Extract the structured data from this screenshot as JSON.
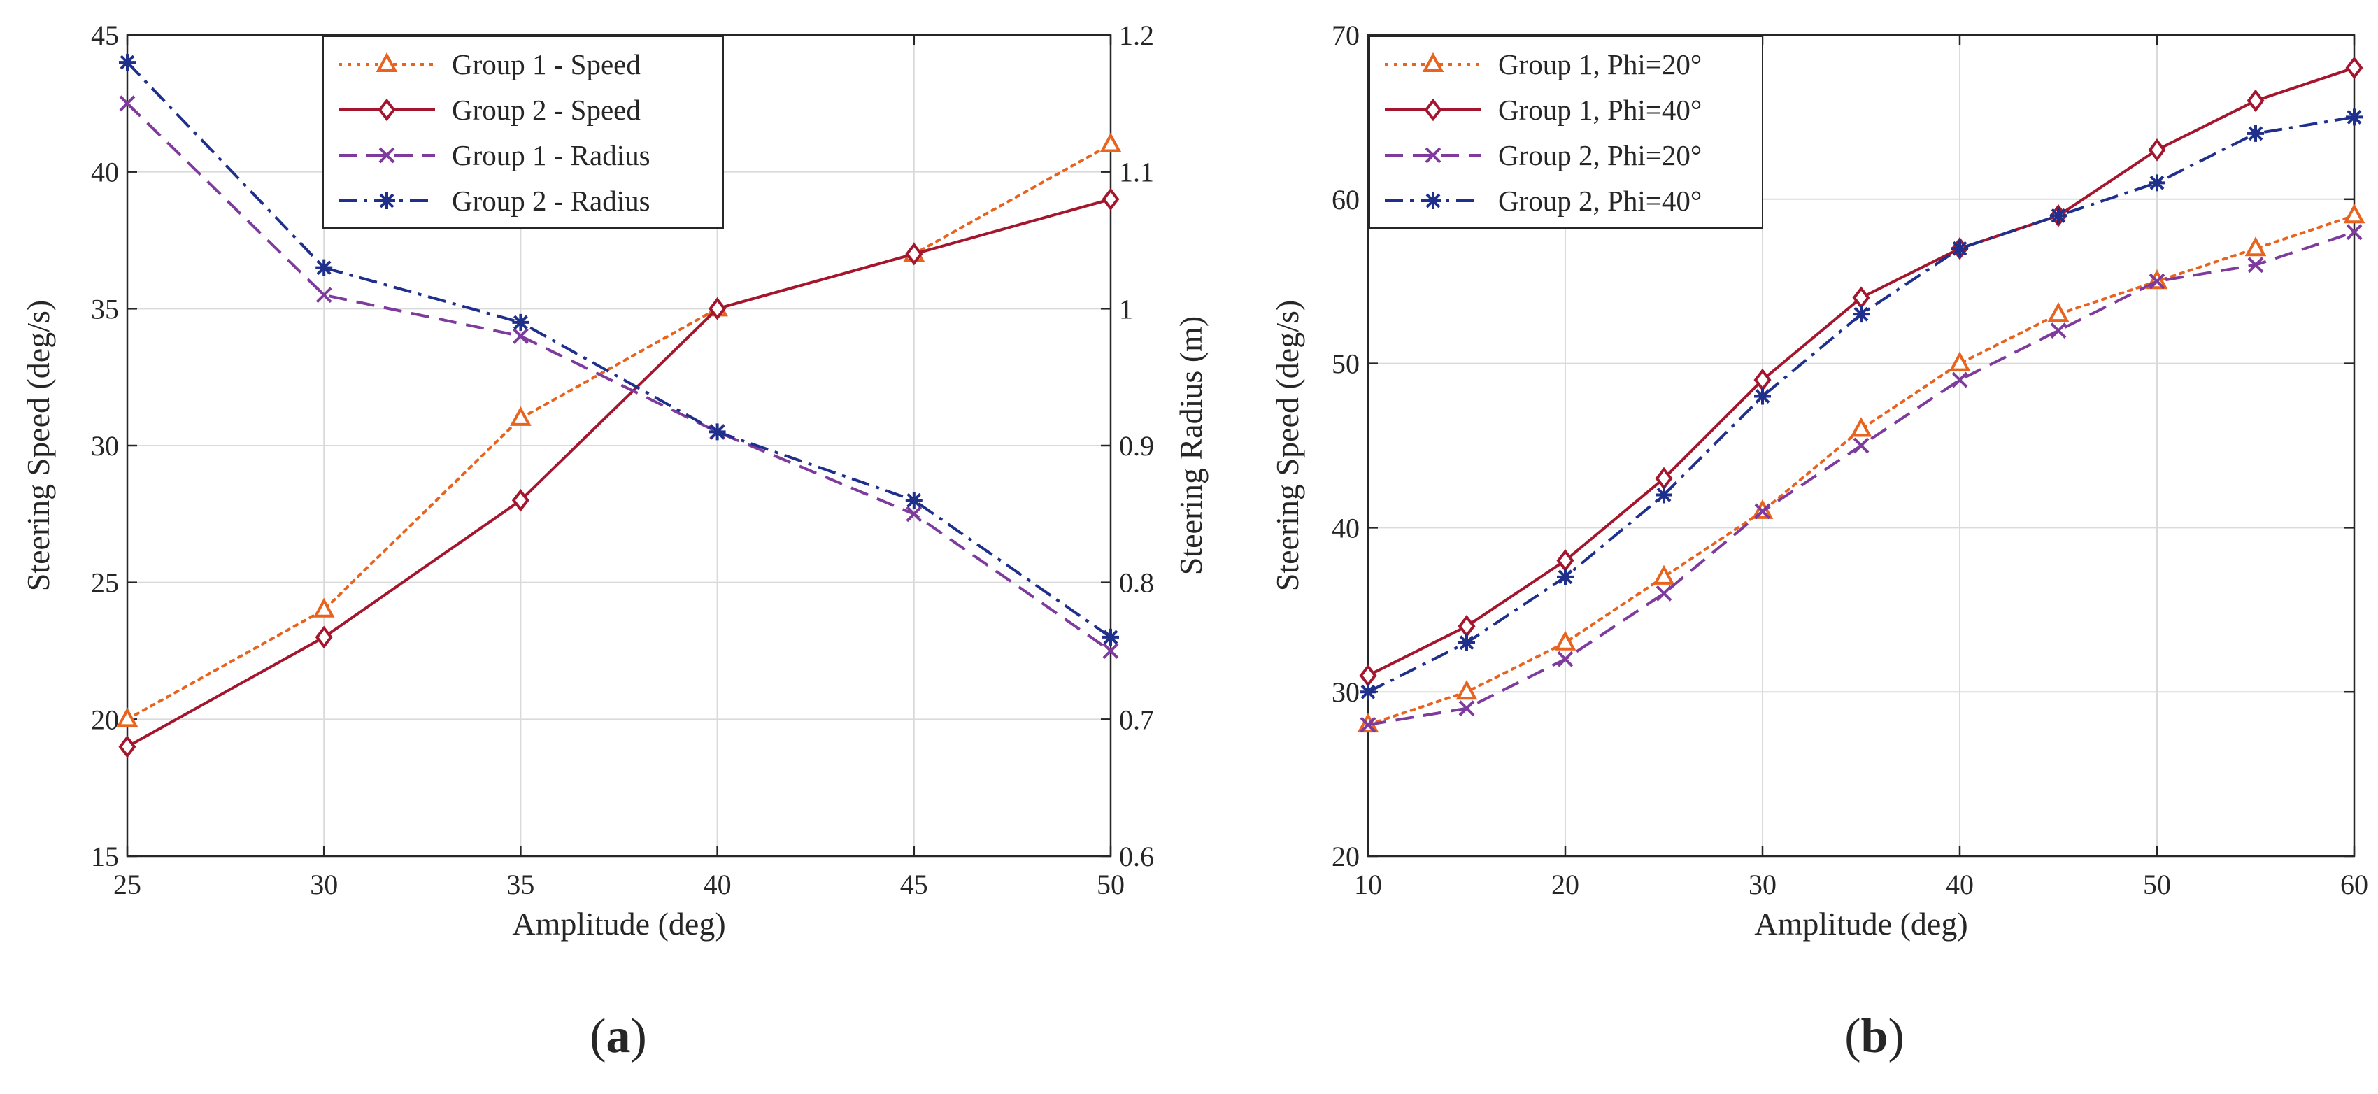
{
  "chart_data": [
    {
      "type": "line",
      "panel_label": "(a)",
      "panel_letter": "a",
      "xlabel": "Amplitude (deg)",
      "ylabel": "Steering Speed (deg/s)",
      "y2label": "Steering Radius (m)",
      "xlim": [
        25,
        50
      ],
      "ylim": [
        15,
        45
      ],
      "y2lim": [
        0.6,
        1.2
      ],
      "xticks": [
        25,
        30,
        35,
        40,
        45,
        50
      ],
      "yticks": [
        15,
        20,
        25,
        30,
        35,
        40,
        45
      ],
      "y2ticks": [
        0.6,
        0.7,
        0.8,
        0.9,
        1,
        1.1,
        1.2
      ],
      "grid": true,
      "legend_position": "top-center",
      "series": [
        {
          "name": "Group 1 - Speed",
          "axis": "left",
          "color": "#e8631e",
          "style": "dotted",
          "marker": "triangle",
          "x": [
            25,
            30,
            35,
            40,
            45,
            50
          ],
          "y": [
            20,
            24,
            31,
            35,
            37,
            41
          ]
        },
        {
          "name": "Group 2 - Speed",
          "axis": "left",
          "color": "#a3162d",
          "style": "solid",
          "marker": "diamond",
          "x": [
            25,
            30,
            35,
            40,
            45,
            50
          ],
          "y": [
            19,
            23,
            28,
            35,
            37,
            39
          ]
        },
        {
          "name": "Group 1 - Radius",
          "axis": "right",
          "color": "#7e3a9c",
          "style": "dashed",
          "marker": "x",
          "x": [
            25,
            30,
            35,
            40,
            45,
            50
          ],
          "y": [
            1.15,
            1.01,
            0.98,
            0.91,
            0.85,
            0.75
          ]
        },
        {
          "name": "Group 2 - Radius",
          "axis": "right",
          "color": "#1f2f8c",
          "style": "dashdot",
          "marker": "star",
          "x": [
            25,
            30,
            35,
            40,
            45,
            50
          ],
          "y": [
            1.18,
            1.03,
            0.99,
            0.91,
            0.86,
            0.76
          ]
        }
      ]
    },
    {
      "type": "line",
      "panel_label": "(b)",
      "panel_letter": "b",
      "xlabel": "Amplitude (deg)",
      "ylabel": "Steering Speed (deg/s)",
      "xlim": [
        10,
        60
      ],
      "ylim": [
        20,
        70
      ],
      "xticks": [
        10,
        20,
        30,
        40,
        50,
        60
      ],
      "yticks": [
        20,
        30,
        40,
        50,
        60,
        70
      ],
      "grid": true,
      "legend_position": "top-left",
      "series": [
        {
          "name": "Group 1, Phi=20°",
          "color": "#e8631e",
          "style": "dotted",
          "marker": "triangle",
          "x": [
            10,
            15,
            20,
            25,
            30,
            35,
            40,
            45,
            50,
            55,
            60
          ],
          "y": [
            28,
            30,
            33,
            37,
            41,
            46,
            50,
            53,
            55,
            57,
            59
          ]
        },
        {
          "name": "Group 1, Phi=40°",
          "color": "#a3162d",
          "style": "solid",
          "marker": "diamond",
          "x": [
            10,
            15,
            20,
            25,
            30,
            35,
            40,
            45,
            50,
            55,
            60
          ],
          "y": [
            31,
            34,
            38,
            43,
            49,
            54,
            57,
            59,
            63,
            66,
            68
          ]
        },
        {
          "name": "Group 2, Phi=20°",
          "color": "#7e3a9c",
          "style": "dashed",
          "marker": "x",
          "x": [
            10,
            15,
            20,
            25,
            30,
            35,
            40,
            45,
            50,
            55,
            60
          ],
          "y": [
            28,
            29,
            32,
            36,
            41,
            45,
            49,
            52,
            55,
            56,
            58
          ]
        },
        {
          "name": "Group 2, Phi=40°",
          "color": "#1f2f8c",
          "style": "dashdot",
          "marker": "star",
          "x": [
            10,
            15,
            20,
            25,
            30,
            35,
            40,
            45,
            50,
            55,
            60
          ],
          "y": [
            30,
            33,
            37,
            42,
            48,
            53,
            57,
            59,
            61,
            64,
            65
          ]
        }
      ]
    }
  ]
}
